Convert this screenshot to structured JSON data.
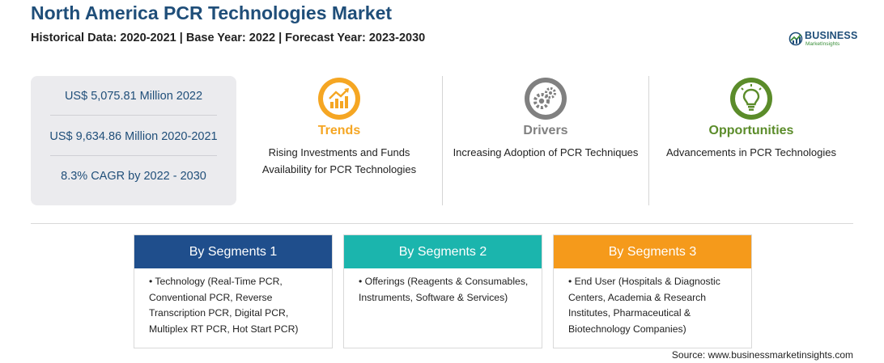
{
  "header": {
    "title": "North America PCR Technologies Market",
    "subtitle": "Historical Data: 2020-2021 | Base Year: 2022 | Forecast Year: 2023-2030"
  },
  "logo": {
    "name": "BUSINESS",
    "tagline": "MarketInsights"
  },
  "stats": [
    "US$ 5,075.81 Million 2022",
    "US$ 9,634.86 Million 2020-2021",
    "8.3% CAGR by 2022 - 2030"
  ],
  "columns": {
    "trends": {
      "heading": "Trends",
      "text": "Rising Investments and Funds Availability for PCR Technologies",
      "color": "#f5a623",
      "icon": "chart-growth-icon"
    },
    "drivers": {
      "heading": "Drivers",
      "text": "Increasing Adoption of PCR Techniques",
      "color": "#808080",
      "icon": "gears-icon"
    },
    "opportunities": {
      "heading": "Opportunities",
      "text": "Advancements in PCR Technologies",
      "color": "#5b8c2a",
      "icon": "lightbulb-icon"
    }
  },
  "segments": [
    {
      "title": "By Segments 1",
      "text": "• Technology (Real-Time PCR, Conventional PCR, Reverse Transcription PCR, Digital PCR, Multiplex RT PCR, Hot Start PCR)",
      "color": "#1f4e8c"
    },
    {
      "title": "By Segments 2",
      "text": "• Offerings (Reagents & Consumables, Instruments, Software & Services)",
      "color": "#1bb5ad"
    },
    {
      "title": "By Segments 3",
      "text": "• End User (Hospitals & Diagnostic Centers, Academia & Research Institutes, Pharmaceutical & Biotechnology Companies)",
      "color": "#f59a1b"
    }
  ],
  "footer": {
    "source": "Source: www.businessmarketinsights.com"
  }
}
